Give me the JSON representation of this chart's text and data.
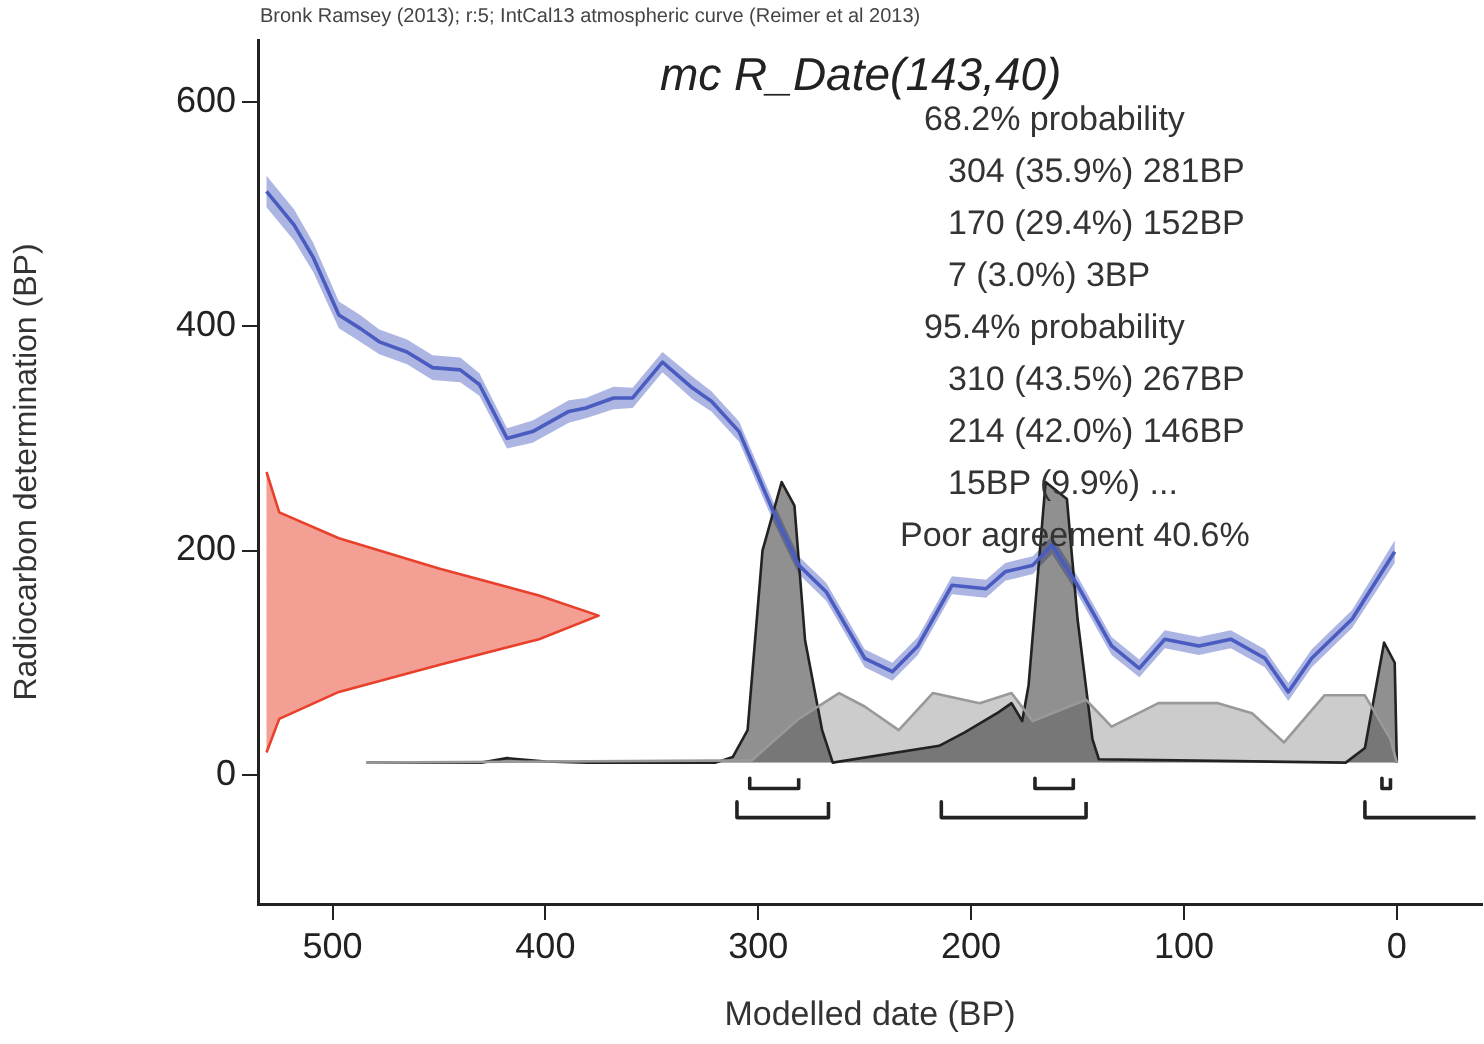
{
  "chart_data": {
    "type": "line",
    "title": "mc R_Date(143,40)",
    "xlabel": "Modelled date (BP)",
    "ylabel": "Radiocarbon determination (BP)",
    "annotations": [
      "Bronk Ramsey (2013); r:5; IntCal13 atmospheric curve (Reimer et al 2013)",
      "68.2% probability",
      "304 (35.9%) 281BP",
      "170 (29.4%) 152BP",
      "7 (3.0%) 3BP",
      "95.4% probability",
      "310 (43.5%) 267BP",
      "214 (42.0%) 146BP",
      "15BP (9.9%) ...",
      "Poor agreement 40.6%"
    ],
    "xlim": [
      535,
      -40
    ],
    "xticks": [
      500,
      400,
      300,
      200,
      100,
      0
    ],
    "ylim": [
      -115,
      655
    ],
    "yticks": [
      0,
      200,
      400,
      600
    ],
    "grid": false,
    "legend": false,
    "marker": "none",
    "series": [
      {
        "type": "line",
        "color": "#4a5cc0",
        "x": [
          531,
          518,
          509,
          497,
          487,
          478,
          465,
          453,
          440,
          431,
          418,
          406,
          389,
          381,
          368,
          359,
          345,
          331,
          322,
          309,
          293,
          281,
          268,
          250,
          237,
          225,
          209,
          193,
          184,
          171,
          162,
          150,
          134,
          121,
          109,
          93,
          78,
          62,
          51,
          40,
          21,
          1
        ],
        "values": [
          520,
          490,
          461,
          410,
          398,
          386,
          377,
          363,
          361,
          348,
          300,
          306,
          324,
          327,
          336,
          336,
          368,
          345,
          333,
          306,
          235,
          187,
          163,
          104,
          92,
          115,
          169,
          166,
          181,
          187,
          205,
          169,
          115,
          95,
          121,
          115,
          121,
          104,
          74,
          104,
          139,
          199
        ],
        "lower": [
          506,
          476,
          448,
          398,
          386,
          375,
          366,
          352,
          350,
          338,
          291,
          296,
          314,
          318,
          326,
          327,
          359,
          335,
          324,
          297,
          226,
          179,
          155,
          96,
          84,
          107,
          161,
          158,
          173,
          179,
          197,
          161,
          107,
          87,
          113,
          107,
          113,
          96,
          66,
          96,
          131,
          189
        ],
        "upper": [
          534,
          504,
          474,
          422,
          410,
          397,
          388,
          374,
          372,
          358,
          309,
          316,
          334,
          336,
          346,
          345,
          377,
          355,
          342,
          315,
          244,
          195,
          171,
          112,
          100,
          123,
          177,
          174,
          189,
          195,
          213,
          177,
          123,
          103,
          129,
          123,
          129,
          112,
          82,
          112,
          147,
          209
        ]
      },
      {
        "type": "area",
        "color": "#e8402a",
        "x": [
          531,
          525,
          497,
          450,
          403,
          375,
          403,
          450,
          497,
          525,
          531
        ],
        "values": [
          270,
          234,
          211,
          184,
          160,
          142,
          121,
          98,
          74,
          50,
          20
        ]
      },
      {
        "type": "area",
        "color": "#999999",
        "x": [
          484,
          303,
          281,
          262,
          250,
          234,
          218,
          196,
          181,
          171,
          146,
          134,
          112,
          84,
          68,
          53,
          34,
          15,
          3,
          0
        ],
        "values": [
          11,
          13,
          50,
          73,
          61,
          40,
          73,
          64,
          73,
          48,
          67,
          43,
          64,
          64,
          55,
          29,
          71,
          71,
          32,
          11
        ]
      },
      {
        "type": "area",
        "color": "#222222",
        "x": [
          484,
          430,
          418,
          400,
          380,
          320,
          312,
          305,
          298,
          289,
          283,
          278,
          270,
          265,
          215,
          203,
          187,
          181,
          176,
          173,
          165,
          155,
          150,
          143,
          140,
          24,
          15,
          6,
          1,
          0
        ],
        "values": [
          11,
          11,
          15,
          12,
          11,
          11,
          16,
          40,
          200,
          261,
          240,
          120,
          40,
          11,
          26,
          38,
          56,
          64,
          48,
          80,
          261,
          246,
          139,
          32,
          14,
          11,
          24,
          118,
          100,
          11
        ]
      },
      {
        "type": "line",
        "color": "#222222",
        "x": [
          304,
          304,
          281,
          281,
          null,
          170,
          170,
          152,
          152,
          null,
          7,
          7,
          3,
          3,
          null,
          310,
          310,
          267,
          267,
          null,
          214,
          214,
          146,
          146,
          null,
          15,
          15,
          -37
        ],
        "values": [
          -3,
          -12,
          -12,
          -3,
          null,
          -3,
          -12,
          -12,
          -3,
          null,
          -3,
          -12,
          -12,
          -3,
          null,
          -24,
          -38,
          -38,
          -24,
          null,
          -24,
          -38,
          -38,
          -24,
          null,
          -24,
          -38,
          -38
        ]
      }
    ]
  }
}
